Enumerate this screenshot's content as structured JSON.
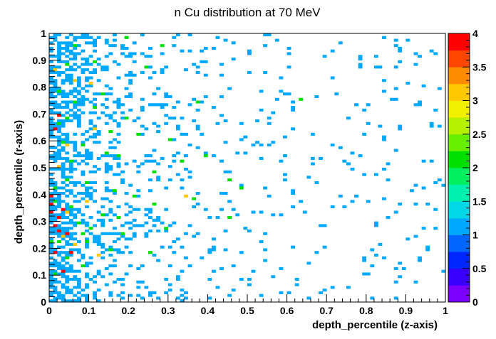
{
  "chart_data": {
    "type": "heatmap",
    "title": "n Cu distribution at 70 MeV",
    "xlabel": "depth_percentile (z-axis)",
    "ylabel": "depth_percentile (r-axis)",
    "xlim": [
      0,
      1
    ],
    "ylim": [
      0,
      1
    ],
    "zlim": [
      0,
      4
    ],
    "x_ticks": [
      "0",
      "0.1",
      "0.2",
      "0.3",
      "0.4",
      "0.5",
      "0.6",
      "0.7",
      "0.8",
      "0.9",
      "1"
    ],
    "y_ticks": [
      "0",
      "0.1",
      "0.2",
      "0.3",
      "0.4",
      "0.5",
      "0.6",
      "0.7",
      "0.8",
      "0.9",
      "1"
    ],
    "colorbar_ticks": [
      "0",
      "0.5",
      "1",
      "1.5",
      "2",
      "2.5",
      "3",
      "3.5",
      "4"
    ],
    "bins": {
      "nx": 100,
      "ny": 100
    },
    "colormap": [
      "#7b00ff",
      "#3a00ff",
      "#0026ff",
      "#0066ff",
      "#00a8ff",
      "#00d8e8",
      "#00f0b0",
      "#00f060",
      "#00e000",
      "#66f000",
      "#b4f000",
      "#f0f000",
      "#ffc800",
      "#ff8c00",
      "#ff4600",
      "#ff0000"
    ],
    "cells_level4": [
      [
        0.015,
        0.285
      ],
      [
        0.025,
        0.315
      ],
      [
        0.035,
        0.345
      ],
      [
        0.005,
        0.365
      ],
      [
        0.005,
        0.395
      ],
      [
        0.015,
        0.645
      ],
      [
        0.025,
        0.695
      ],
      [
        0.045,
        0.255
      ],
      [
        0.055,
        0.185
      ],
      [
        0.015,
        0.185
      ],
      [
        0.035,
        0.115
      ],
      [
        0.025,
        0.265
      ],
      [
        0.005,
        0.335
      ]
    ],
    "cells_level3": [
      [
        0.045,
        0.335
      ],
      [
        0.035,
        0.245
      ],
      [
        0.065,
        0.215
      ],
      [
        0.025,
        0.505
      ],
      [
        0.045,
        0.585
      ],
      [
        0.115,
        0.645
      ],
      [
        0.105,
        0.815
      ],
      [
        0.015,
        0.865
      ],
      [
        0.345,
        0.395
      ],
      [
        0.125,
        0.175
      ],
      [
        0.065,
        0.825
      ],
      [
        0.095,
        0.375
      ]
    ],
    "cells_level2": [
      [
        0.015,
        0.375
      ],
      [
        0.055,
        0.355
      ],
      [
        0.075,
        0.295
      ],
      [
        0.045,
        0.455
      ],
      [
        0.095,
        0.445
      ],
      [
        0.015,
        0.425
      ],
      [
        0.055,
        0.525
      ],
      [
        0.035,
        0.595
      ],
      [
        0.025,
        0.665
      ],
      [
        0.065,
        0.745
      ],
      [
        0.025,
        0.785
      ],
      [
        0.045,
        0.885
      ],
      [
        0.145,
        0.555
      ],
      [
        0.165,
        0.415
      ],
      [
        0.135,
        0.325
      ],
      [
        0.105,
        0.275
      ],
      [
        0.185,
        0.255
      ],
      [
        0.155,
        0.195
      ],
      [
        0.265,
        0.485
      ],
      [
        0.265,
        0.365
      ],
      [
        0.225,
        0.625
      ],
      [
        0.195,
        0.685
      ],
      [
        0.135,
        0.775
      ],
      [
        0.115,
        0.895
      ],
      [
        0.245,
        0.875
      ],
      [
        0.285,
        0.955
      ],
      [
        0.375,
        0.745
      ],
      [
        0.395,
        0.545
      ],
      [
        0.365,
        0.385
      ],
      [
        0.455,
        0.455
      ],
      [
        0.295,
        0.275
      ],
      [
        0.255,
        0.185
      ],
      [
        0.085,
        0.135
      ],
      [
        0.045,
        0.165
      ],
      [
        0.065,
        0.955
      ],
      [
        0.195,
        0.985
      ],
      [
        0.635,
        0.755
      ],
      [
        0.455,
        0.315
      ],
      [
        0.485,
        0.425
      ],
      [
        0.175,
        0.545
      ],
      [
        0.025,
        0.225
      ],
      [
        0.015,
        0.105
      ],
      [
        0.005,
        0.225
      ],
      [
        0.085,
        0.585
      ],
      [
        0.115,
        0.725
      ],
      [
        0.155,
        0.635
      ],
      [
        0.305,
        0.605
      ],
      [
        0.335,
        0.525
      ],
      [
        0.215,
        0.395
      ],
      [
        0.175,
        0.315
      ],
      [
        0.095,
        0.225
      ],
      [
        0.045,
        0.685
      ],
      [
        0.085,
        0.255
      ]
    ]
  }
}
